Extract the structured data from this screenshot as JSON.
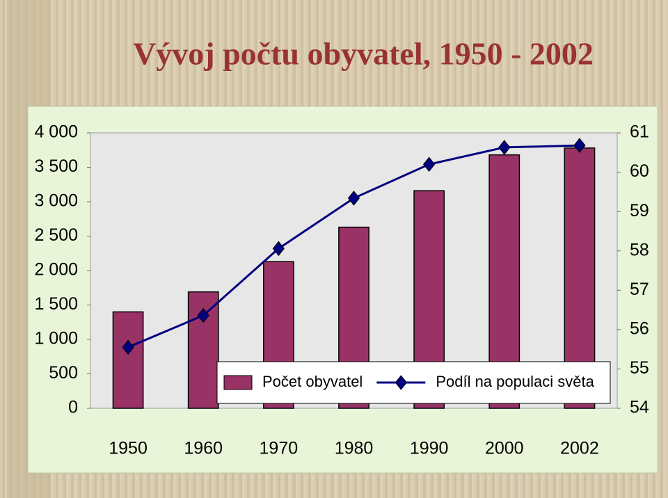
{
  "chart_data": {
    "type": "bar-line",
    "title": "Vývoj počtu obyvatel, 1950 - 2002",
    "categories": [
      "1950",
      "1960",
      "1970",
      "1980",
      "1990",
      "2000",
      "2002"
    ],
    "series": [
      {
        "name": "Počet obyvatel",
        "type": "bar",
        "color": "#993366",
        "values": [
          1400,
          1690,
          2130,
          2630,
          3160,
          3680,
          3780
        ]
      },
      {
        "name": "Podíl na populaci světa",
        "type": "line",
        "axis": "y2",
        "color": "#000080",
        "values": [
          55.55,
          56.36,
          58.06,
          59.34,
          60.2,
          60.63,
          60.68
        ]
      }
    ],
    "ylim": [
      0,
      4000
    ],
    "yticks": [
      0,
      500,
      {
        "value": 1000,
        "label": "1 000"
      },
      {
        "value": 1500,
        "label": "1 500"
      },
      {
        "value": 2000,
        "label": "2 000"
      },
      {
        "value": 2500,
        "label": "2 500"
      },
      {
        "value": 3000,
        "label": "3 000"
      },
      {
        "value": 3500,
        "label": "3 500"
      },
      {
        "value": 4000,
        "label": "4 000"
      }
    ],
    "y2lim": [
      54,
      61
    ],
    "y2ticks": [
      54,
      55,
      56,
      57,
      58,
      59,
      60,
      61
    ],
    "legend": "lower-right"
  }
}
